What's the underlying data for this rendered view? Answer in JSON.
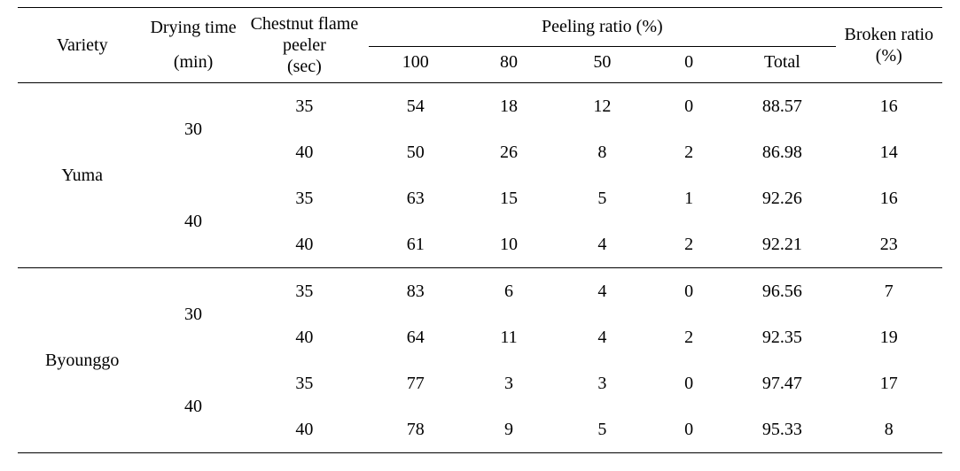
{
  "table": {
    "background_color": "#ffffff",
    "text_color": "#000000",
    "rule_color": "#000000",
    "font_family": "Times New Roman, Batang, serif",
    "font_size_pt": 15,
    "columns": {
      "variety": "Variety",
      "drying_time_label": "Drying time",
      "drying_time_unit": "(min)",
      "peeler_label": "Chestnut flame peeler",
      "peeler_unit": "(sec)",
      "peeling_ratio_group": "Peeling ratio (%)",
      "peeling_100": "100",
      "peeling_80": "80",
      "peeling_50": "50",
      "peeling_0": "0",
      "peeling_total": "Total",
      "broken_label": "Broken ratio",
      "broken_unit": "(%)"
    },
    "varieties": [
      {
        "name": "Yuma",
        "groups": [
          {
            "drying_time": "30",
            "rows": [
              {
                "peeler": "35",
                "p100": "54",
                "p80": "18",
                "p50": "12",
                "p0": "0",
                "total": "88.57",
                "broken": "16"
              },
              {
                "peeler": "40",
                "p100": "50",
                "p80": "26",
                "p50": "8",
                "p0": "2",
                "total": "86.98",
                "broken": "14"
              }
            ]
          },
          {
            "drying_time": "40",
            "rows": [
              {
                "peeler": "35",
                "p100": "63",
                "p80": "15",
                "p50": "5",
                "p0": "1",
                "total": "92.26",
                "broken": "16"
              },
              {
                "peeler": "40",
                "p100": "61",
                "p80": "10",
                "p50": "4",
                "p0": "2",
                "total": "92.21",
                "broken": "23"
              }
            ]
          }
        ]
      },
      {
        "name": "Byounggo",
        "groups": [
          {
            "drying_time": "30",
            "rows": [
              {
                "peeler": "35",
                "p100": "83",
                "p80": "6",
                "p50": "4",
                "p0": "0",
                "total": "96.56",
                "broken": "7"
              },
              {
                "peeler": "40",
                "p100": "64",
                "p80": "11",
                "p50": "4",
                "p0": "2",
                "total": "92.35",
                "broken": "19"
              }
            ]
          },
          {
            "drying_time": "40",
            "rows": [
              {
                "peeler": "35",
                "p100": "77",
                "p80": "3",
                "p50": "3",
                "p0": "0",
                "total": "97.47",
                "broken": "17"
              },
              {
                "peeler": "40",
                "p100": "78",
                "p80": "9",
                "p50": "5",
                "p0": "0",
                "total": "95.33",
                "broken": "8"
              }
            ]
          }
        ]
      }
    ]
  }
}
